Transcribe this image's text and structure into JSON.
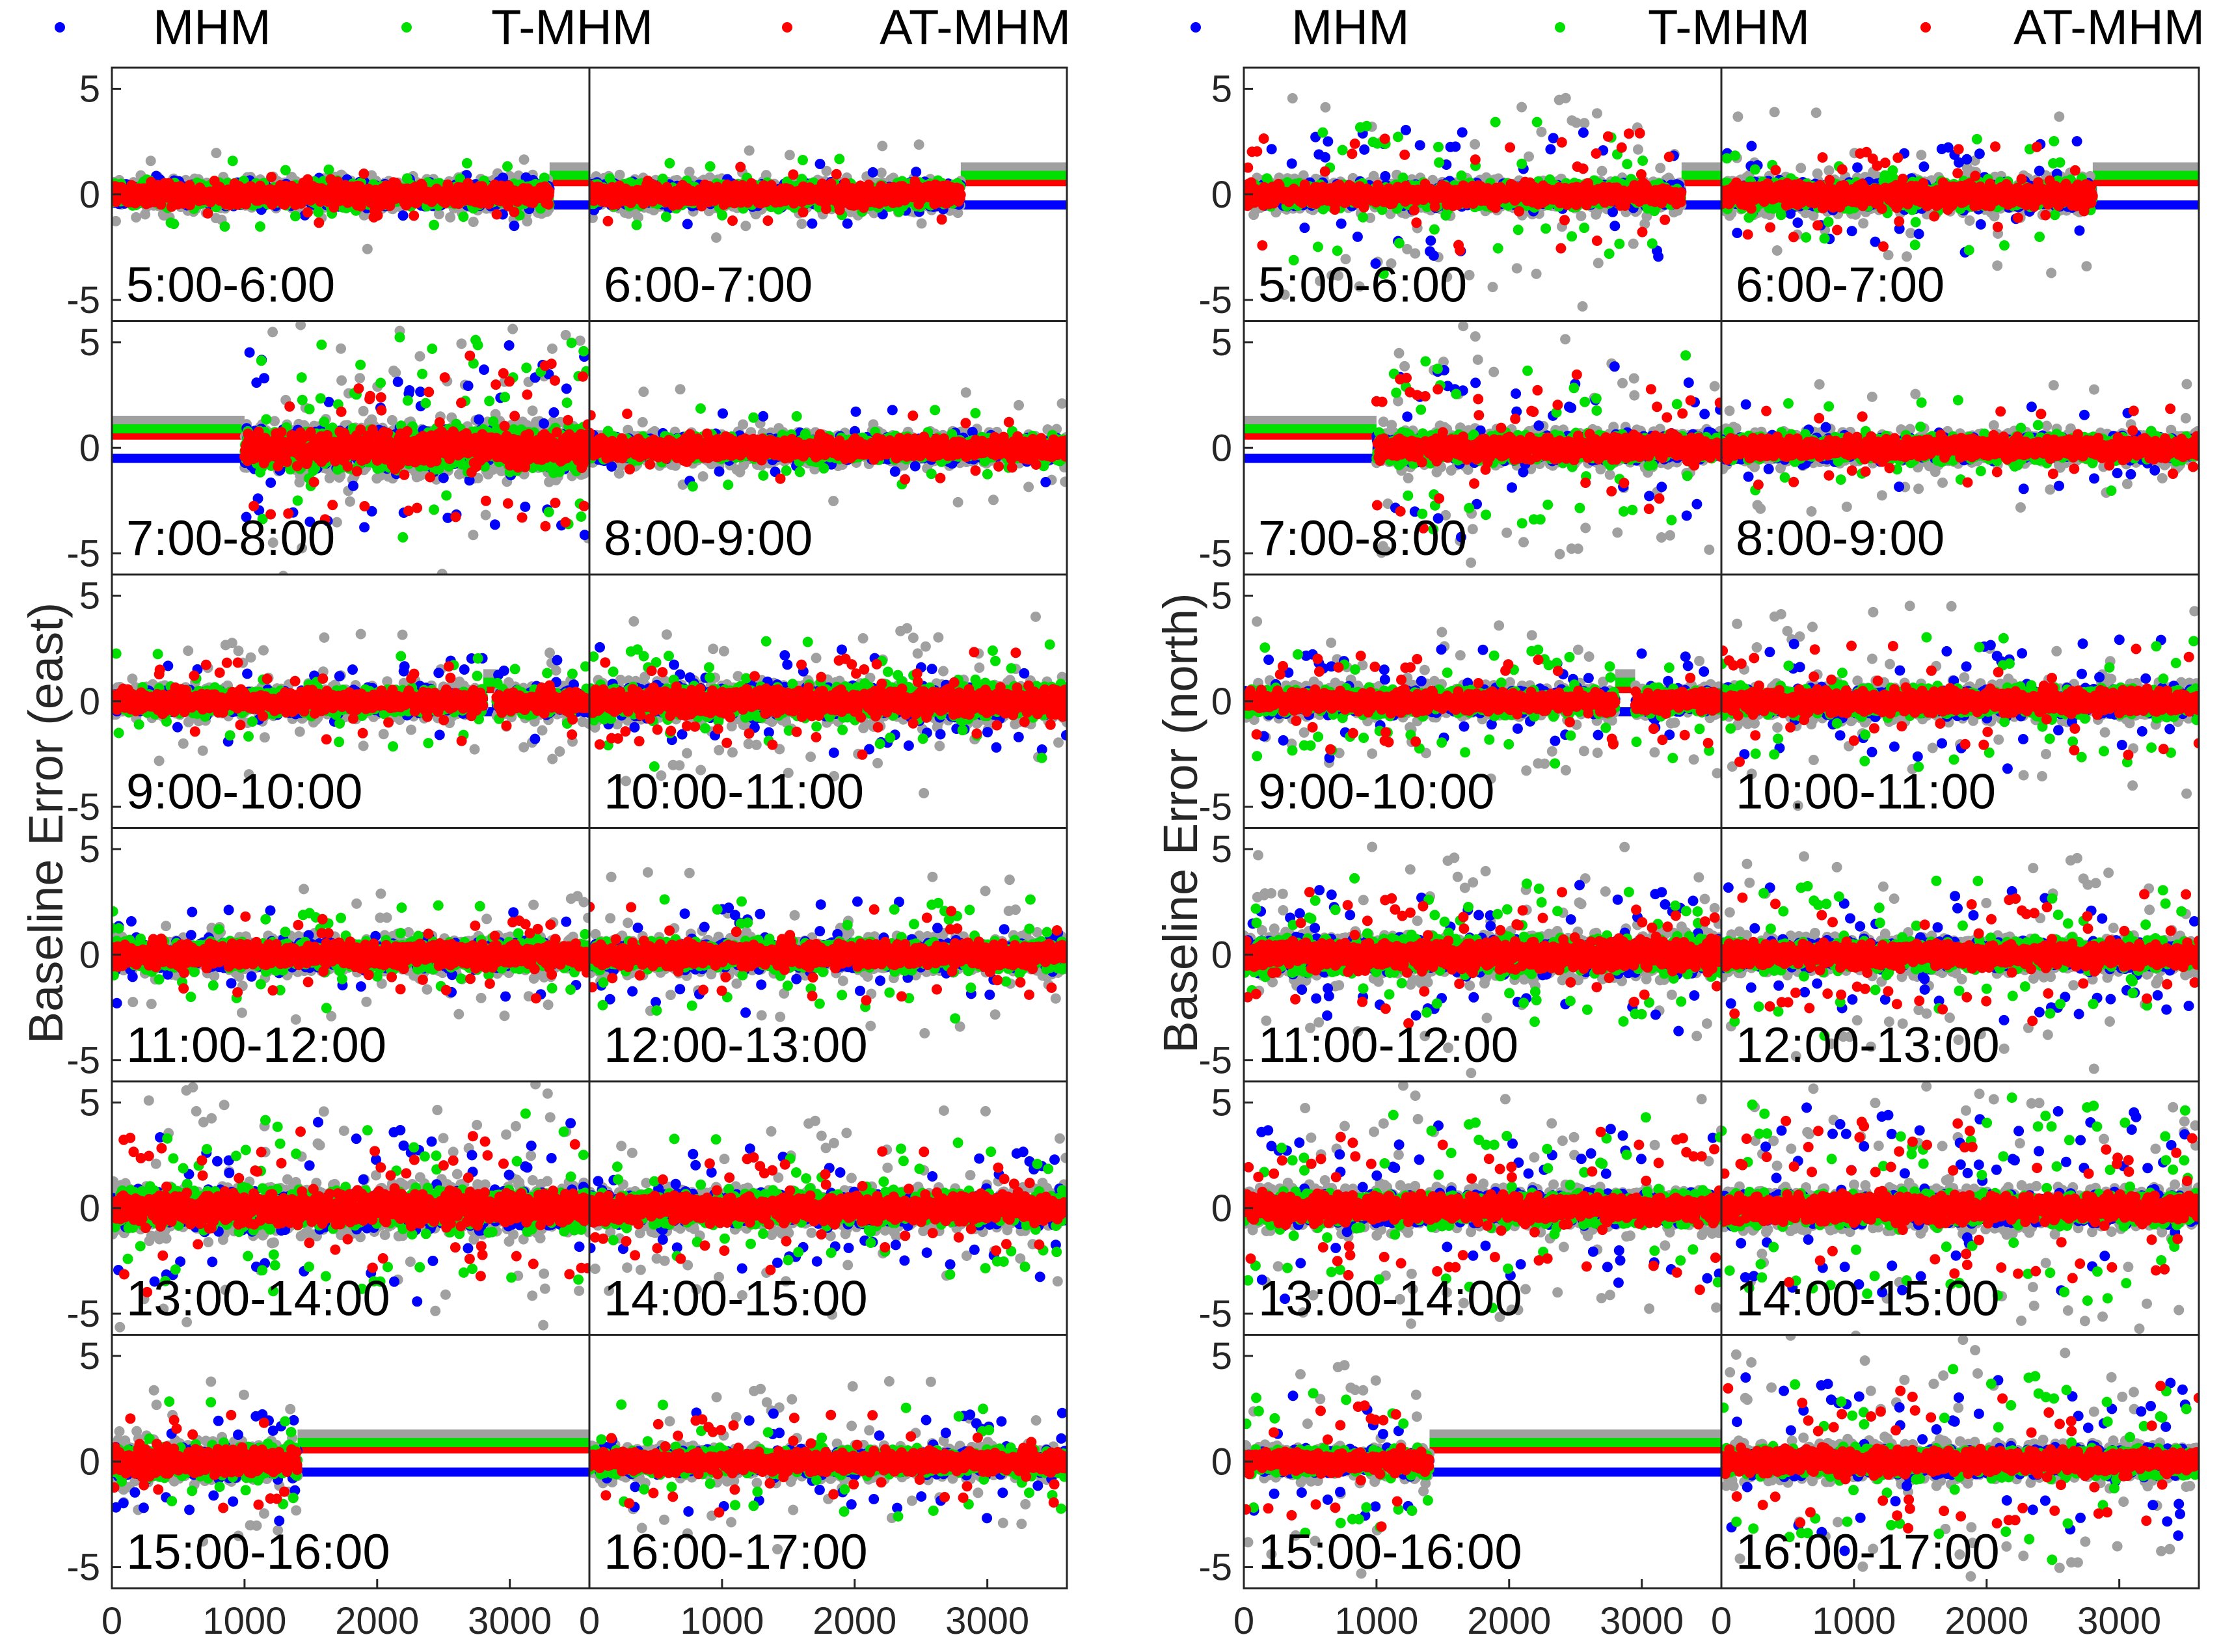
{
  "chart_data": {
    "type": "scatter",
    "legend": {
      "placement": "top",
      "entries": [
        {
          "label": "MHM",
          "color": "#0000ff"
        },
        {
          "label": "T-MHM",
          "color": "#00e000"
        },
        {
          "label": "AT-MHM",
          "color": "#ff0000"
        }
      ]
    },
    "reference_series_color": "#a0a0a0",
    "x_axis": {
      "range": [
        0,
        3600
      ],
      "ticks": [
        0,
        1000,
        2000,
        3000
      ]
    },
    "y_axis": {
      "range": [
        -6,
        6
      ],
      "ticks": [
        -5,
        0,
        5
      ],
      "tick_labels": [
        "-5",
        "0",
        "5"
      ]
    },
    "subplots": [
      {
        "ylabel": "Baseline Error (east)",
        "rows": [
          [
            {
              "hour": "5:00-6:00",
              "std": 0.35,
              "spike": 0.8,
              "spikeRate": 0.02,
              "gaps": [
                [
                  3300,
                  3600
                ]
              ]
            },
            {
              "hour": "6:00-7:00",
              "std": 0.35,
              "spike": 0.8,
              "spikeRate": 0.02,
              "gaps": [
                [
                  2800,
                  3600
                ]
              ]
            }
          ],
          [
            {
              "hour": "7:00-8:00",
              "std": 0.6,
              "spike": 3.0,
              "spikeRate": 0.06,
              "gaps": [
                [
                  0,
                  1000
                ]
              ]
            },
            {
              "hour": "8:00-9:00",
              "std": 0.35,
              "spike": 1.0,
              "spikeRate": 0.02,
              "gaps": []
            }
          ],
          [
            {
              "hour": "9:00-10:00",
              "std": 0.35,
              "spike": 1.2,
              "spikeRate": 0.03,
              "gaps": [
                [
                  2800,
                  2900
                ]
              ]
            },
            {
              "hour": "10:00-11:00",
              "std": 0.45,
              "spike": 1.5,
              "spikeRate": 0.04,
              "gaps": []
            }
          ],
          [
            {
              "hour": "11:00-12:00",
              "std": 0.4,
              "spike": 1.2,
              "spikeRate": 0.03,
              "gaps": []
            },
            {
              "hour": "12:00-13:00",
              "std": 0.4,
              "spike": 1.5,
              "spikeRate": 0.03,
              "gaps": []
            }
          ],
          [
            {
              "hour": "13:00-14:00",
              "std": 0.55,
              "spike": 2.5,
              "spikeRate": 0.05,
              "gaps": []
            },
            {
              "hour": "14:00-15:00",
              "std": 0.45,
              "spike": 1.8,
              "spikeRate": 0.04,
              "gaps": []
            }
          ],
          [
            {
              "hour": "15:00-16:00",
              "std": 0.45,
              "spike": 1.5,
              "spikeRate": 0.04,
              "gaps": [
                [
                  1400,
                  3600
                ]
              ]
            },
            {
              "hour": "16:00-17:00",
              "std": 0.35,
              "spike": 1.5,
              "spikeRate": 0.03,
              "gaps": []
            }
          ]
        ]
      },
      {
        "ylabel": "Baseline Error (north)",
        "rows": [
          [
            {
              "hour": "5:00-6:00",
              "std": 0.35,
              "spike": 2.0,
              "spikeRate": 0.04,
              "gaps": [
                [
                  3300,
                  3600
                ]
              ]
            },
            {
              "hour": "6:00-7:00",
              "std": 0.4,
              "spike": 1.5,
              "spikeRate": 0.03,
              "gaps": [
                [
                  2800,
                  3600
                ]
              ]
            }
          ],
          [
            {
              "hour": "7:00-8:00",
              "std": 0.4,
              "spike": 2.5,
              "spikeRate": 0.05,
              "gaps": [
                [
                  0,
                  1000
                ]
              ]
            },
            {
              "hour": "8:00-9:00",
              "std": 0.35,
              "spike": 1.2,
              "spikeRate": 0.02,
              "gaps": []
            }
          ],
          [
            {
              "hour": "9:00-10:00",
              "std": 0.35,
              "spike": 1.5,
              "spikeRate": 0.04,
              "gaps": [
                [
                  2800,
                  2950
                ]
              ]
            },
            {
              "hour": "10:00-11:00",
              "std": 0.4,
              "spike": 1.8,
              "spikeRate": 0.03,
              "gaps": []
            }
          ],
          [
            {
              "hour": "11:00-12:00",
              "std": 0.5,
              "spike": 2.0,
              "spikeRate": 0.05,
              "gaps": []
            },
            {
              "hour": "12:00-13:00",
              "std": 0.4,
              "spike": 2.0,
              "spikeRate": 0.04,
              "gaps": []
            }
          ],
          [
            {
              "hour": "13:00-14:00",
              "std": 0.45,
              "spike": 2.5,
              "spikeRate": 0.05,
              "gaps": []
            },
            {
              "hour": "14:00-15:00",
              "std": 0.45,
              "spike": 3.0,
              "spikeRate": 0.06,
              "gaps": []
            }
          ],
          [
            {
              "hour": "15:00-16:00",
              "std": 0.35,
              "spike": 2.0,
              "spikeRate": 0.04,
              "gaps": [
                [
                  1400,
                  3600
                ]
              ]
            },
            {
              "hour": "16:00-17:00",
              "std": 0.4,
              "spike": 2.5,
              "spikeRate": 0.05,
              "gaps": []
            }
          ]
        ]
      }
    ]
  }
}
